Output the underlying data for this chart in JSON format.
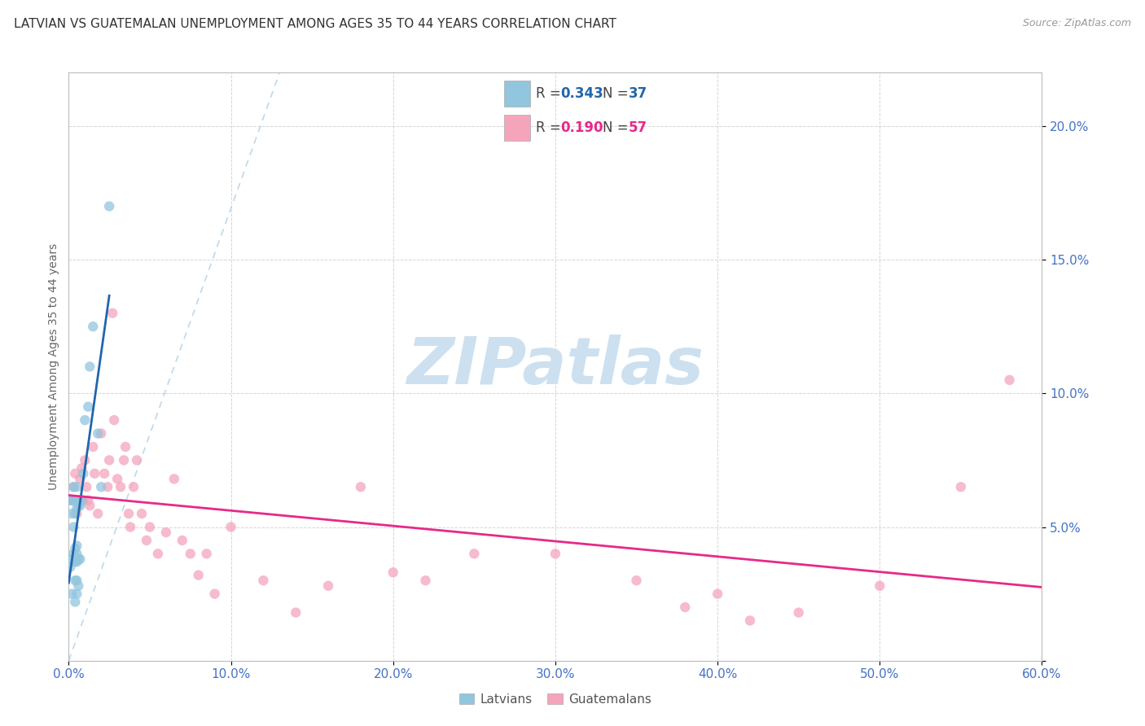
{
  "title": "LATVIAN VS GUATEMALAN UNEMPLOYMENT AMONG AGES 35 TO 44 YEARS CORRELATION CHART",
  "source": "Source: ZipAtlas.com",
  "ylabel": "Unemployment Among Ages 35 to 44 years",
  "xlim": [
    0.0,
    0.6
  ],
  "ylim": [
    0.0,
    0.22
  ],
  "latvian_color": "#92c5de",
  "guatemalan_color": "#f4a5bc",
  "latvian_trend_color": "#2166ac",
  "guatemalan_trend_color": "#e7298a",
  "diag_color": "#b8d4e8",
  "legend_latvian_R": "0.343",
  "legend_latvian_N": "37",
  "legend_guatemalan_R": "0.190",
  "legend_guatemalan_N": "57",
  "latvian_x": [
    0.001,
    0.001,
    0.002,
    0.002,
    0.002,
    0.002,
    0.003,
    0.003,
    0.003,
    0.003,
    0.004,
    0.004,
    0.004,
    0.004,
    0.004,
    0.004,
    0.005,
    0.005,
    0.005,
    0.005,
    0.005,
    0.005,
    0.005,
    0.006,
    0.006,
    0.006,
    0.007,
    0.007,
    0.008,
    0.009,
    0.01,
    0.012,
    0.013,
    0.015,
    0.018,
    0.02,
    0.025
  ],
  "latvian_y": [
    0.035,
    0.06,
    0.025,
    0.038,
    0.055,
    0.06,
    0.04,
    0.05,
    0.06,
    0.065,
    0.022,
    0.03,
    0.037,
    0.042,
    0.055,
    0.06,
    0.025,
    0.03,
    0.037,
    0.04,
    0.043,
    0.057,
    0.065,
    0.028,
    0.038,
    0.058,
    0.038,
    0.058,
    0.06,
    0.07,
    0.09,
    0.095,
    0.11,
    0.125,
    0.085,
    0.065,
    0.17
  ],
  "guatemalan_x": [
    0.002,
    0.003,
    0.004,
    0.005,
    0.006,
    0.007,
    0.008,
    0.009,
    0.01,
    0.011,
    0.012,
    0.013,
    0.015,
    0.016,
    0.018,
    0.02,
    0.022,
    0.024,
    0.025,
    0.027,
    0.028,
    0.03,
    0.032,
    0.034,
    0.035,
    0.037,
    0.038,
    0.04,
    0.042,
    0.045,
    0.048,
    0.05,
    0.055,
    0.06,
    0.065,
    0.07,
    0.075,
    0.08,
    0.085,
    0.09,
    0.1,
    0.12,
    0.14,
    0.16,
    0.18,
    0.2,
    0.22,
    0.25,
    0.3,
    0.35,
    0.38,
    0.4,
    0.42,
    0.45,
    0.5,
    0.55,
    0.58
  ],
  "guatemalan_y": [
    0.06,
    0.065,
    0.07,
    0.055,
    0.06,
    0.068,
    0.072,
    0.06,
    0.075,
    0.065,
    0.06,
    0.058,
    0.08,
    0.07,
    0.055,
    0.085,
    0.07,
    0.065,
    0.075,
    0.13,
    0.09,
    0.068,
    0.065,
    0.075,
    0.08,
    0.055,
    0.05,
    0.065,
    0.075,
    0.055,
    0.045,
    0.05,
    0.04,
    0.048,
    0.068,
    0.045,
    0.04,
    0.032,
    0.04,
    0.025,
    0.05,
    0.03,
    0.018,
    0.028,
    0.065,
    0.033,
    0.03,
    0.04,
    0.04,
    0.03,
    0.02,
    0.025,
    0.015,
    0.018,
    0.028,
    0.065,
    0.105
  ],
  "background_color": "#ffffff",
  "grid_color": "#d5d5d5",
  "tick_color": "#4472c4",
  "watermark": "ZIPatlas",
  "watermark_color": "#cce0f0",
  "title_fontsize": 11,
  "source_fontsize": 9,
  "axis_fontsize": 10,
  "tick_fontsize": 11,
  "scatter_size": 80,
  "scatter_alpha": 0.75
}
